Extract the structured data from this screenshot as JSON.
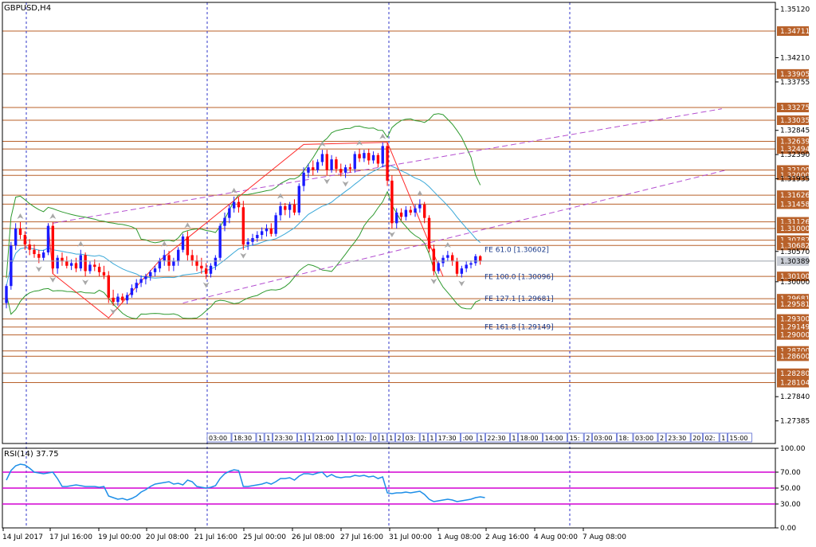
{
  "window": {
    "title": "GBPUSD,H4"
  },
  "chart_data": {
    "type": "candlestick",
    "symbol": "GBPUSD",
    "timeframe": "H4",
    "ylim": [
      1.2696,
      1.3525
    ],
    "price_ticks": [
      "1.35120",
      "1.34210",
      "1.33755",
      "1.32845",
      "1.32390",
      "1.31935",
      "1.30570",
      "1.30000",
      "1.27840",
      "1.27385"
    ],
    "current_price": "1.30389",
    "horizontal_levels": [
      "1.34711",
      "1.33905",
      "1.33275",
      "1.33035",
      "1.32639",
      "1.32494",
      "1.32100",
      "1.32000",
      "1.31626",
      "1.31458",
      "1.31126",
      "1.31000",
      "1.30782",
      "1.30682",
      "1.30100",
      "1.29681",
      "1.29581",
      "1.29300",
      "1.29149",
      "1.29000",
      "1.28700",
      "1.28600",
      "1.28280",
      "1.28104"
    ],
    "fibonacci_expansion": [
      {
        "label": "FE 61.0 [1.30602]",
        "price": 1.30602
      },
      {
        "label": "FE 100.0 [1.30096]",
        "price": 1.30096
      },
      {
        "label": "FE 127.1 [1.29681]",
        "price": 1.29681
      },
      {
        "label": "FE 161.8 [1.29149]",
        "price": 1.29149
      }
    ],
    "time_labels": [
      "14 Jul 2017",
      "17 Jul 16:00",
      "19 Jul 00:00",
      "20 Jul 08:00",
      "21 Jul 16:00",
      "25 Jul 00:00",
      "26 Jul 08:00",
      "27 Jul 16:00",
      "31 Jul 00:00",
      "1 Aug 08:00",
      "2 Aug 16:00",
      "4 Aug 00:00",
      "7 Aug 08:00"
    ],
    "session_labels": [
      "03:00",
      "18:30",
      "1",
      "1",
      "23:30",
      "1",
      "1",
      "21:00",
      "1",
      "1",
      "02:",
      "0",
      "1",
      "1",
      "2",
      "03:",
      "1",
      "1",
      "17:30",
      ":00",
      "1",
      "22:30",
      "1",
      "18:00",
      "14:00",
      "15:",
      "2",
      "03:00",
      "18:",
      "03:00",
      "2",
      "23:30",
      "20",
      "02:",
      "1",
      "15:00",
      "03:00",
      "22:30"
    ],
    "candles": [
      {
        "o": 1.296,
        "h": 1.2995,
        "l": 1.295,
        "c": 1.2992
      },
      {
        "o": 1.2992,
        "h": 1.3075,
        "l": 1.2985,
        "c": 1.3068
      },
      {
        "o": 1.3068,
        "h": 1.311,
        "l": 1.306,
        "c": 1.31
      },
      {
        "o": 1.31,
        "h": 1.3112,
        "l": 1.308,
        "c": 1.3088
      },
      {
        "o": 1.3088,
        "h": 1.3095,
        "l": 1.306,
        "c": 1.307
      },
      {
        "o": 1.307,
        "h": 1.308,
        "l": 1.305,
        "c": 1.306
      },
      {
        "o": 1.306,
        "h": 1.307,
        "l": 1.3045,
        "c": 1.3052
      },
      {
        "o": 1.3052,
        "h": 1.306,
        "l": 1.3035,
        "c": 1.3045
      },
      {
        "o": 1.3045,
        "h": 1.306,
        "l": 1.304,
        "c": 1.3055
      },
      {
        "o": 1.3055,
        "h": 1.311,
        "l": 1.305,
        "c": 1.3105
      },
      {
        "o": 1.3105,
        "h": 1.3112,
        "l": 1.3015,
        "c": 1.3025
      },
      {
        "o": 1.3025,
        "h": 1.305,
        "l": 1.3015,
        "c": 1.3045
      },
      {
        "o": 1.3045,
        "h": 1.3055,
        "l": 1.303,
        "c": 1.3038
      },
      {
        "o": 1.3038,
        "h": 1.3048,
        "l": 1.3025,
        "c": 1.303
      },
      {
        "o": 1.303,
        "h": 1.3042,
        "l": 1.3022,
        "c": 1.3035
      },
      {
        "o": 1.3035,
        "h": 1.3045,
        "l": 1.3018,
        "c": 1.3025
      },
      {
        "o": 1.3025,
        "h": 1.306,
        "l": 1.302,
        "c": 1.305
      },
      {
        "o": 1.305,
        "h": 1.3055,
        "l": 1.301,
        "c": 1.302
      },
      {
        "o": 1.302,
        "h": 1.3038,
        "l": 1.3015,
        "c": 1.3032
      },
      {
        "o": 1.3032,
        "h": 1.3042,
        "l": 1.302,
        "c": 1.3028
      },
      {
        "o": 1.3028,
        "h": 1.3035,
        "l": 1.301,
        "c": 1.3018
      },
      {
        "o": 1.3018,
        "h": 1.303,
        "l": 1.3005,
        "c": 1.3012
      },
      {
        "o": 1.3012,
        "h": 1.302,
        "l": 1.296,
        "c": 1.297
      },
      {
        "o": 1.297,
        "h": 1.2985,
        "l": 1.2955,
        "c": 1.2962
      },
      {
        "o": 1.2962,
        "h": 1.2978,
        "l": 1.2955,
        "c": 1.2972
      },
      {
        "o": 1.2972,
        "h": 1.2978,
        "l": 1.296,
        "c": 1.2965
      },
      {
        "o": 1.2965,
        "h": 1.298,
        "l": 1.2958,
        "c": 1.2975
      },
      {
        "o": 1.2975,
        "h": 1.2995,
        "l": 1.297,
        "c": 1.2988
      },
      {
        "o": 1.2988,
        "h": 1.3005,
        "l": 1.298,
        "c": 1.2998
      },
      {
        "o": 1.2998,
        "h": 1.3012,
        "l": 1.299,
        "c": 1.3005
      },
      {
        "o": 1.3005,
        "h": 1.3015,
        "l": 1.2995,
        "c": 1.301
      },
      {
        "o": 1.301,
        "h": 1.3022,
        "l": 1.3002,
        "c": 1.3018
      },
      {
        "o": 1.3018,
        "h": 1.303,
        "l": 1.301,
        "c": 1.3025
      },
      {
        "o": 1.3025,
        "h": 1.3045,
        "l": 1.3018,
        "c": 1.304
      },
      {
        "o": 1.304,
        "h": 1.306,
        "l": 1.303,
        "c": 1.305
      },
      {
        "o": 1.305,
        "h": 1.3058,
        "l": 1.302,
        "c": 1.303
      },
      {
        "o": 1.303,
        "h": 1.3045,
        "l": 1.302,
        "c": 1.3038
      },
      {
        "o": 1.3038,
        "h": 1.3065,
        "l": 1.303,
        "c": 1.306
      },
      {
        "o": 1.306,
        "h": 1.309,
        "l": 1.3055,
        "c": 1.3085
      },
      {
        "o": 1.3085,
        "h": 1.3095,
        "l": 1.304,
        "c": 1.305
      },
      {
        "o": 1.305,
        "h": 1.306,
        "l": 1.303,
        "c": 1.304
      },
      {
        "o": 1.304,
        "h": 1.305,
        "l": 1.302,
        "c": 1.303
      },
      {
        "o": 1.303,
        "h": 1.3045,
        "l": 1.3015,
        "c": 1.3025
      },
      {
        "o": 1.3025,
        "h": 1.3035,
        "l": 1.3005,
        "c": 1.3015
      },
      {
        "o": 1.3015,
        "h": 1.3035,
        "l": 1.3008,
        "c": 1.303
      },
      {
        "o": 1.303,
        "h": 1.305,
        "l": 1.3022,
        "c": 1.3045
      },
      {
        "o": 1.3045,
        "h": 1.311,
        "l": 1.304,
        "c": 1.3105
      },
      {
        "o": 1.3105,
        "h": 1.313,
        "l": 1.3095,
        "c": 1.312
      },
      {
        "o": 1.312,
        "h": 1.3145,
        "l": 1.311,
        "c": 1.3138
      },
      {
        "o": 1.3138,
        "h": 1.316,
        "l": 1.313,
        "c": 1.315
      },
      {
        "o": 1.315,
        "h": 1.3158,
        "l": 1.313,
        "c": 1.314
      },
      {
        "o": 1.314,
        "h": 1.3152,
        "l": 1.306,
        "c": 1.307
      },
      {
        "o": 1.307,
        "h": 1.3082,
        "l": 1.306,
        "c": 1.3075
      },
      {
        "o": 1.3075,
        "h": 1.309,
        "l": 1.3068,
        "c": 1.3082
      },
      {
        "o": 1.3082,
        "h": 1.3095,
        "l": 1.3075,
        "c": 1.3088
      },
      {
        "o": 1.3088,
        "h": 1.3102,
        "l": 1.308,
        "c": 1.3095
      },
      {
        "o": 1.3095,
        "h": 1.3108,
        "l": 1.3085,
        "c": 1.31
      },
      {
        "o": 1.31,
        "h": 1.311,
        "l": 1.3085,
        "c": 1.309
      },
      {
        "o": 1.309,
        "h": 1.313,
        "l": 1.3085,
        "c": 1.3125
      },
      {
        "o": 1.3125,
        "h": 1.315,
        "l": 1.3115,
        "c": 1.3142
      },
      {
        "o": 1.3142,
        "h": 1.3148,
        "l": 1.3125,
        "c": 1.3135
      },
      {
        "o": 1.3135,
        "h": 1.315,
        "l": 1.312,
        "c": 1.3145
      },
      {
        "o": 1.3145,
        "h": 1.3155,
        "l": 1.3125,
        "c": 1.313
      },
      {
        "o": 1.313,
        "h": 1.3185,
        "l": 1.3125,
        "c": 1.318
      },
      {
        "o": 1.318,
        "h": 1.3215,
        "l": 1.317,
        "c": 1.3205
      },
      {
        "o": 1.3205,
        "h": 1.3222,
        "l": 1.3195,
        "c": 1.3215
      },
      {
        "o": 1.3215,
        "h": 1.3228,
        "l": 1.32,
        "c": 1.321
      },
      {
        "o": 1.321,
        "h": 1.323,
        "l": 1.3205,
        "c": 1.3225
      },
      {
        "o": 1.3225,
        "h": 1.3248,
        "l": 1.3218,
        "c": 1.324
      },
      {
        "o": 1.324,
        "h": 1.3248,
        "l": 1.32,
        "c": 1.321
      },
      {
        "o": 1.321,
        "h": 1.3238,
        "l": 1.3205,
        "c": 1.323
      },
      {
        "o": 1.323,
        "h": 1.3235,
        "l": 1.3205,
        "c": 1.3212
      },
      {
        "o": 1.3212,
        "h": 1.3222,
        "l": 1.3198,
        "c": 1.3205
      },
      {
        "o": 1.3205,
        "h": 1.322,
        "l": 1.3195,
        "c": 1.3215
      },
      {
        "o": 1.3215,
        "h": 1.3222,
        "l": 1.3205,
        "c": 1.3212
      },
      {
        "o": 1.3212,
        "h": 1.3245,
        "l": 1.3205,
        "c": 1.324
      },
      {
        "o": 1.324,
        "h": 1.325,
        "l": 1.3225,
        "c": 1.3232
      },
      {
        "o": 1.3232,
        "h": 1.3248,
        "l": 1.3225,
        "c": 1.3242
      },
      {
        "o": 1.3242,
        "h": 1.325,
        "l": 1.322,
        "c": 1.3228
      },
      {
        "o": 1.3228,
        "h": 1.3245,
        "l": 1.3222,
        "c": 1.3238
      },
      {
        "o": 1.3238,
        "h": 1.3242,
        "l": 1.3215,
        "c": 1.3222
      },
      {
        "o": 1.3222,
        "h": 1.3262,
        "l": 1.3215,
        "c": 1.3255
      },
      {
        "o": 1.3255,
        "h": 1.3262,
        "l": 1.318,
        "c": 1.319
      },
      {
        "o": 1.319,
        "h": 1.32,
        "l": 1.31,
        "c": 1.311
      },
      {
        "o": 1.311,
        "h": 1.3138,
        "l": 1.31,
        "c": 1.313
      },
      {
        "o": 1.313,
        "h": 1.3138,
        "l": 1.3115,
        "c": 1.3122
      },
      {
        "o": 1.3122,
        "h": 1.3142,
        "l": 1.3115,
        "c": 1.3135
      },
      {
        "o": 1.3135,
        "h": 1.3142,
        "l": 1.3125,
        "c": 1.313
      },
      {
        "o": 1.313,
        "h": 1.3145,
        "l": 1.3122,
        "c": 1.3138
      },
      {
        "o": 1.3138,
        "h": 1.3155,
        "l": 1.313,
        "c": 1.3145
      },
      {
        "o": 1.3145,
        "h": 1.315,
        "l": 1.311,
        "c": 1.312
      },
      {
        "o": 1.312,
        "h": 1.3125,
        "l": 1.3055,
        "c": 1.3062
      },
      {
        "o": 1.3062,
        "h": 1.307,
        "l": 1.3012,
        "c": 1.302
      },
      {
        "o": 1.302,
        "h": 1.304,
        "l": 1.3015,
        "c": 1.3035
      },
      {
        "o": 1.3035,
        "h": 1.305,
        "l": 1.3028,
        "c": 1.3045
      },
      {
        "o": 1.3045,
        "h": 1.3058,
        "l": 1.3038,
        "c": 1.305
      },
      {
        "o": 1.305,
        "h": 1.3055,
        "l": 1.303,
        "c": 1.3038
      },
      {
        "o": 1.3038,
        "h": 1.3045,
        "l": 1.301,
        "c": 1.3015
      },
      {
        "o": 1.3015,
        "h": 1.303,
        "l": 1.3008,
        "c": 1.3025
      },
      {
        "o": 1.3025,
        "h": 1.3038,
        "l": 1.3018,
        "c": 1.3032
      },
      {
        "o": 1.3032,
        "h": 1.304,
        "l": 1.3025,
        "c": 1.3035
      },
      {
        "o": 1.3035,
        "h": 1.3052,
        "l": 1.303,
        "c": 1.3048
      },
      {
        "o": 1.3048,
        "h": 1.305,
        "l": 1.3032,
        "c": 1.3039
      }
    ],
    "indicator": {
      "label": "RSI(14) 37.75",
      "ylim": [
        0,
        100
      ],
      "ticks": [
        "100.00",
        "70.00",
        "50.00",
        "30.00",
        "0.00"
      ],
      "levels": [
        70,
        50,
        30
      ],
      "values": [
        60,
        72,
        78,
        80,
        79,
        75,
        70,
        69,
        68,
        69,
        70,
        62,
        52,
        52,
        53,
        54,
        53,
        52,
        52,
        52,
        51,
        52,
        40,
        38,
        36,
        37,
        35,
        37,
        40,
        45,
        48,
        52,
        55,
        56,
        57,
        58,
        55,
        56,
        54,
        60,
        58,
        52,
        51,
        50,
        51,
        53,
        62,
        68,
        71,
        73,
        72,
        52,
        52,
        53,
        54,
        55,
        57,
        55,
        58,
        62,
        62,
        63,
        60,
        65,
        68,
        68,
        67,
        69,
        70,
        64,
        67,
        64,
        63,
        64,
        64,
        66,
        65,
        66,
        64,
        65,
        62,
        64,
        44,
        43,
        44,
        44,
        45,
        44,
        45,
        46,
        42,
        36,
        33,
        34,
        35,
        36,
        35,
        33,
        34,
        35,
        36,
        38,
        39,
        38
      ]
    },
    "colors": {
      "bull": "#1a1aff",
      "bear": "#ff0000",
      "level_line": "#b8612a",
      "level_label_bg": "#b8612a",
      "bollinger": "#2f9a2f",
      "moving_average": "#3aa8d8",
      "channel": "#b44fd0",
      "zigzag": "#ff2a2a",
      "rsi_line": "#1e8fe8",
      "rsi_levels": "#d400d4",
      "period_separator": "#2f35c8",
      "price_label_bg": "#c8ccd4"
    }
  }
}
